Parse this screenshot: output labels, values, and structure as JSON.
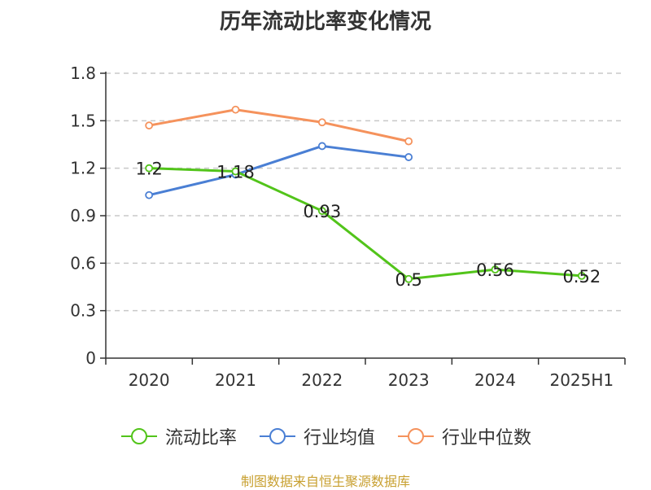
{
  "title": "历年流动比率变化情况",
  "source": "制图数据来自恒生聚源数据库",
  "chart_data": {
    "type": "line",
    "title": "历年流动比率变化情况",
    "categories": [
      "2020",
      "2021",
      "2022",
      "2023",
      "2024",
      "2025H1"
    ],
    "y_ticks": [
      "0",
      "0.3",
      "0.6",
      "0.9",
      "1.2",
      "1.5",
      "1.8"
    ],
    "ylim": [
      0,
      1.8
    ],
    "grid": true,
    "legend_position": "bottom",
    "series": [
      {
        "name": "流动比率",
        "color": "#52c41a",
        "values": [
          1.2,
          1.18,
          0.93,
          0.5,
          0.56,
          0.52
        ],
        "labels": [
          "1.2",
          "1.18",
          "0.93",
          "0.5",
          "0.56",
          "0.52"
        ]
      },
      {
        "name": "行业均值",
        "color": "#4a7fd4",
        "values": [
          1.03,
          1.16,
          1.34,
          1.27,
          null,
          null
        ]
      },
      {
        "name": "行业中位数",
        "color": "#f5925c",
        "values": [
          1.47,
          1.57,
          1.49,
          1.37,
          null,
          null
        ]
      }
    ]
  }
}
